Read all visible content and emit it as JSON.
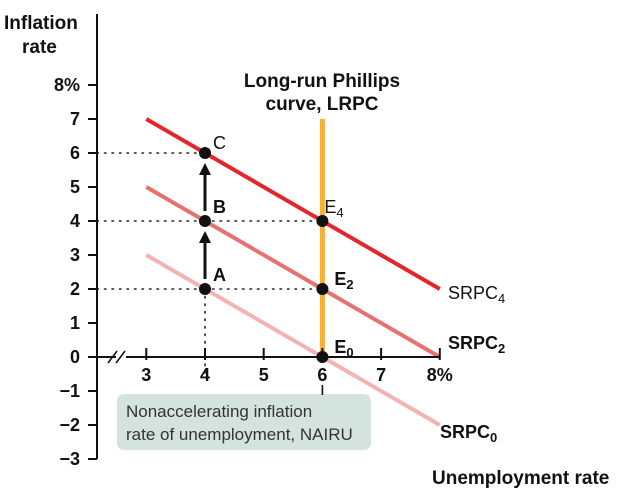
{
  "chart_data": {
    "type": "line",
    "ylabel": "Inflation rate",
    "xlabel": "Unemployment rate",
    "xlim": [
      2.55,
      8
    ],
    "ylim": [
      -3,
      8
    ],
    "x_tick_labels": [
      {
        "x": 3,
        "label": "3"
      },
      {
        "x": 4,
        "label": "4"
      },
      {
        "x": 5,
        "label": "5"
      },
      {
        "x": 6,
        "label": "6"
      },
      {
        "x": 7,
        "label": "7"
      },
      {
        "x": 8,
        "label": "8%"
      }
    ],
    "y_tick_labels": [
      {
        "y": 8,
        "label": "8%"
      },
      {
        "y": 7,
        "label": "7"
      },
      {
        "y": 6,
        "label": "6"
      },
      {
        "y": 5,
        "label": "5"
      },
      {
        "y": 4,
        "label": "4"
      },
      {
        "y": 3,
        "label": "3"
      },
      {
        "y": 2,
        "label": "2"
      },
      {
        "y": 1,
        "label": "1"
      },
      {
        "y": 0,
        "label": "0"
      },
      {
        "y": -1,
        "label": "−1"
      },
      {
        "y": -2,
        "label": "−2"
      },
      {
        "y": -3,
        "label": "−3"
      }
    ],
    "series": [
      {
        "name": "SRPC0",
        "label_main": "SRPC",
        "label_sub": "0",
        "color": "#f4b3b3",
        "x": [
          3,
          8
        ],
        "y": [
          3,
          -2
        ]
      },
      {
        "name": "SRPC2",
        "label_main": "SRPC",
        "label_sub": "2",
        "color": "#e8716f",
        "x": [
          3,
          8
        ],
        "y": [
          5,
          0
        ]
      },
      {
        "name": "SRPC4",
        "label_main": "SRPC",
        "label_sub": "4",
        "color": "#e3262c",
        "x": [
          3,
          8
        ],
        "y": [
          7,
          2
        ]
      }
    ],
    "lrpc": {
      "x": 6,
      "y_range": [
        0,
        7
      ],
      "color": "#f9b233",
      "title_lines": [
        "Long-run Phillips",
        "curve, LRPC"
      ]
    },
    "points": [
      {
        "name": "A",
        "label": "A",
        "sub": "",
        "x": 4,
        "y": 2
      },
      {
        "name": "B",
        "label": "B",
        "sub": "",
        "x": 4,
        "y": 4
      },
      {
        "name": "C",
        "label": "C",
        "sub": "",
        "x": 4,
        "y": 6
      },
      {
        "name": "E0",
        "label": "E",
        "sub": "0",
        "x": 6,
        "y": 0
      },
      {
        "name": "E2",
        "label": "E",
        "sub": "2",
        "x": 6,
        "y": 2
      },
      {
        "name": "E4",
        "label": "E",
        "sub": "4",
        "x": 6,
        "y": 4
      }
    ],
    "arrows": [
      {
        "from": [
          4,
          2
        ],
        "to": [
          4,
          4
        ]
      },
      {
        "from": [
          4,
          4
        ],
        "to": [
          4,
          6
        ]
      }
    ],
    "nairu_annotation": {
      "lines": [
        "Nonaccelerating inflation",
        "rate of unemployment, NAIRU"
      ],
      "box_color": "#d5e3df"
    },
    "axis_break": true
  }
}
